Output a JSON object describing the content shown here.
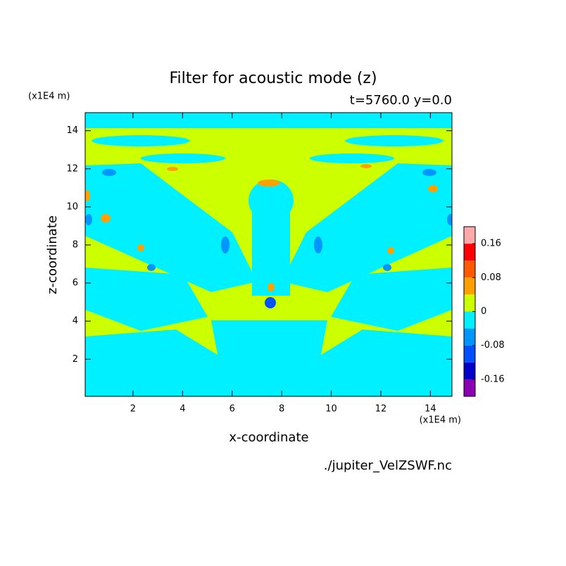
{
  "chart_data": {
    "type": "contour",
    "title": "Filter for acoustic mode (z)",
    "subtitle": "t=5760.0 y=0.0",
    "x_label": "x-coordinate",
    "y_label": "z-coordinate",
    "x_unit": "(x1E4 m)",
    "y_unit": "(x1E4 m)",
    "source": "./jupiter_VelZSWF.nc",
    "xlim": [
      0.07,
      14.87
    ],
    "ylim": [
      0.05,
      14.95
    ],
    "xticks": [
      2,
      4,
      6,
      8,
      10,
      12,
      14
    ],
    "yticks": [
      2,
      4,
      6,
      8,
      10,
      12,
      14
    ],
    "colorbar": {
      "levels": [
        -0.2,
        -0.16,
        -0.12,
        -0.08,
        -0.04,
        0,
        0.04,
        0.08,
        0.12,
        0.16,
        0.2
      ],
      "colors": [
        "#8c00b4",
        "#0000c8",
        "#0050ff",
        "#0096ff",
        "#00f0ff",
        "#ccff00",
        "#ffa000",
        "#ff5a00",
        "#ff0000",
        "#ffaaaa"
      ],
      "ticks": [
        -0.16,
        -0.08,
        0,
        0.08,
        0.16
      ]
    }
  }
}
